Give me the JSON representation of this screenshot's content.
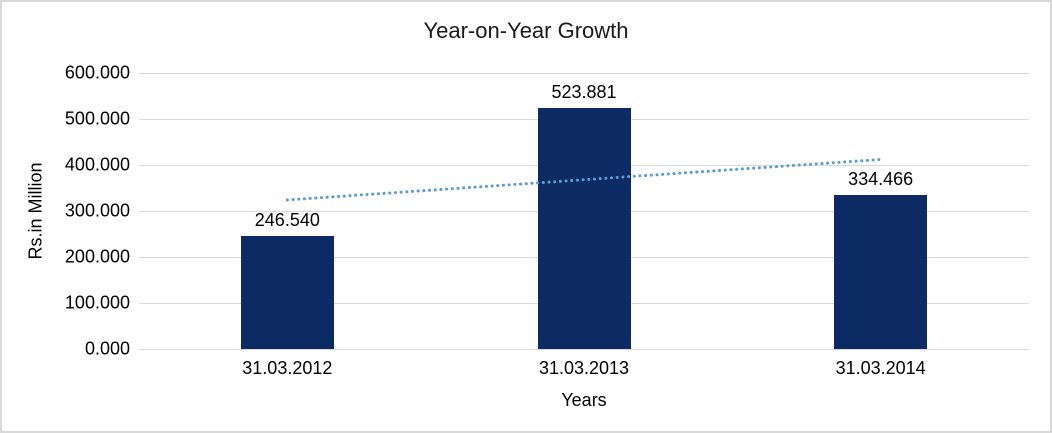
{
  "chart_data": {
    "type": "bar",
    "title": "Year-on-Year Growth",
    "xlabel": "Years",
    "ylabel": "Rs.in Million",
    "categories": [
      "31.03.2012",
      "31.03.2013",
      "31.03.2014"
    ],
    "values": [
      246.54,
      523.881,
      334.466
    ],
    "value_labels": [
      "246.540",
      "523.881",
      "334.466"
    ],
    "ylim": [
      0,
      600
    ],
    "yticks": [
      {
        "value": 0,
        "label": "0.000"
      },
      {
        "value": 100,
        "label": "100.000"
      },
      {
        "value": 200,
        "label": "200.000"
      },
      {
        "value": 300,
        "label": "300.000"
      },
      {
        "value": 400,
        "label": "400.000"
      },
      {
        "value": 500,
        "label": "500.000"
      },
      {
        "value": 600,
        "label": "600.000"
      }
    ],
    "grid": true,
    "legend": "none",
    "trendline": {
      "type": "linear",
      "style": "dotted",
      "start_value": 324,
      "end_value": 412
    },
    "colors": {
      "bar": "#0c2a63",
      "trendline": "#5b9bd5",
      "gridline": "#d9d9d9",
      "border": "#d9d9d9",
      "background": "#ffffff",
      "text": "#000000"
    }
  }
}
